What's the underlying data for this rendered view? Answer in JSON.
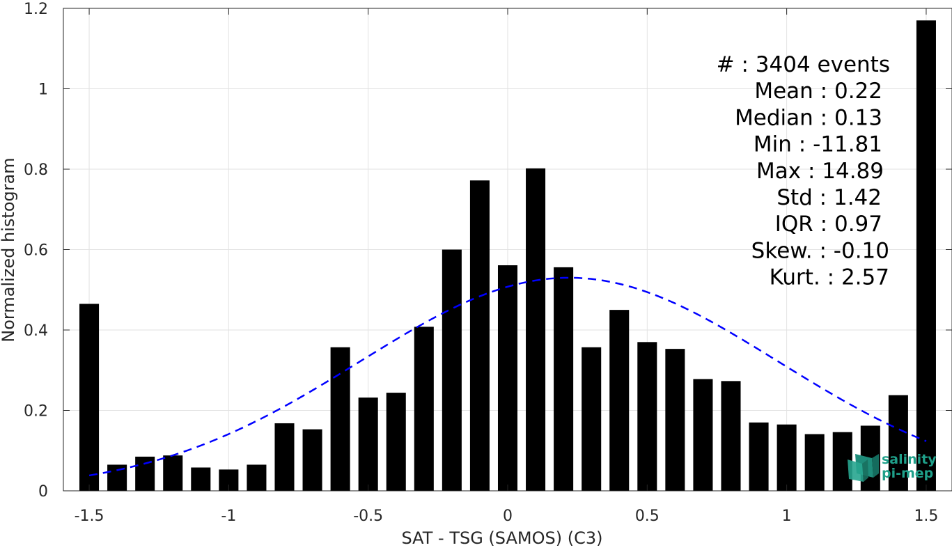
{
  "chart_data": {
    "type": "bar",
    "xlabel": "SAT - TSG (SAMOS) (C3)",
    "ylabel": "Normalized histogram",
    "xlim": [
      -1.5925,
      1.5925
    ],
    "ylim": [
      0,
      1.2
    ],
    "xticks": [
      -1.5,
      -1,
      -0.5,
      0,
      0.5,
      1,
      1.5
    ],
    "xtick_labels": [
      "-1.5",
      "-1",
      "-0.5",
      "0",
      "0.5",
      "1",
      "1.5"
    ],
    "yticks": [
      0,
      0.2,
      0.4,
      0.6,
      0.8,
      1,
      1.2
    ],
    "ytick_labels": [
      "0",
      "0.2",
      "0.4",
      "0.6",
      "0.8",
      "1",
      "1.2"
    ],
    "grid": true,
    "bar_color": "#000000",
    "bar_width": 0.07,
    "x": [
      -1.5,
      -1.4,
      -1.3,
      -1.2,
      -1.1,
      -1.0,
      -0.9,
      -0.8,
      -0.7,
      -0.6,
      -0.5,
      -0.4,
      -0.3,
      -0.2,
      -0.1,
      0.0,
      0.1,
      0.2,
      0.3,
      0.4,
      0.5,
      0.6,
      0.7,
      0.8,
      0.9,
      1.0,
      1.1,
      1.2,
      1.3,
      1.4,
      1.5
    ],
    "values": [
      0.465,
      0.065,
      0.085,
      0.088,
      0.058,
      0.053,
      0.065,
      0.168,
      0.153,
      0.357,
      0.232,
      0.244,
      0.408,
      0.6,
      0.772,
      0.561,
      0.802,
      0.556,
      0.357,
      0.45,
      0.37,
      0.353,
      0.278,
      0.273,
      0.17,
      0.165,
      0.141,
      0.146,
      0.162,
      0.238,
      1.17
    ],
    "fit_curve": {
      "style": "dashed",
      "color": "#0000ff",
      "mean": 0.22,
      "std": 0.75,
      "peak": 0.53,
      "x_range": [
        -1.5,
        1.5
      ]
    },
    "annotations": [
      "#  : 3404 events",
      "Mean : 0.22",
      "Median : 0.13",
      "Min : -11.81",
      "Max : 14.89",
      "Std : 1.42",
      "IQR : 0.97",
      "Skew. : -0.10",
      "Kurt. : 2.57"
    ]
  },
  "logo": {
    "line1": "salinity",
    "line2": "pi-mep",
    "color": "#1fa08a"
  }
}
